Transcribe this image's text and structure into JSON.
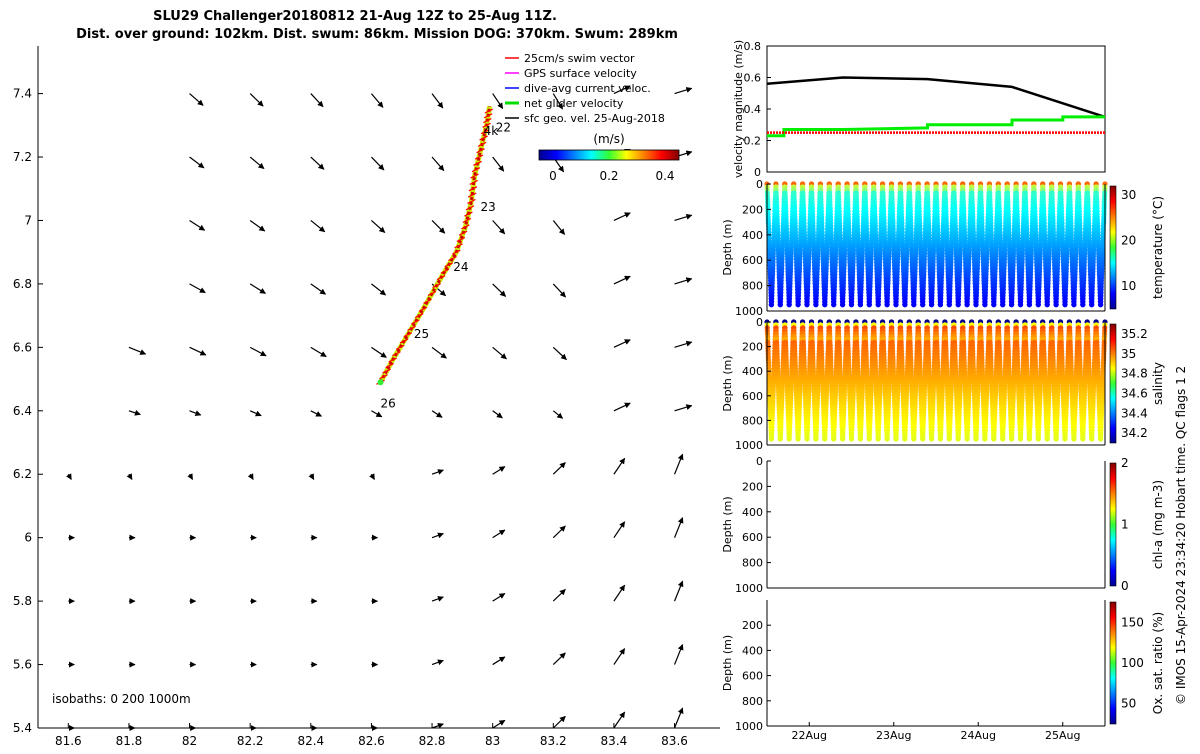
{
  "title_line1": "SLU29 Challenger20180812 21-Aug 12Z to 25-Aug 11Z.",
  "title_line2": "Dist. over ground: 102km. Dist. swum: 86km. Mission DOG: 370km. Swum: 289km",
  "copyright": "© IMOS 15-Apr-2024 23:34:20 Hobart time. QC flags 1  2",
  "chart_data": [
    {
      "type": "quiver-map",
      "xlim": [
        81.5,
        83.75
      ],
      "ylim": [
        5.4,
        7.55
      ],
      "xticks": [
        "81.6",
        "81.8",
        "82",
        "82.2",
        "82.4",
        "82.6",
        "82.8",
        "83",
        "83.2",
        "83.4",
        "83.6"
      ],
      "yticks": [
        "5.4",
        "5.6",
        "5.8",
        "6",
        "6.2",
        "6.4",
        "6.6",
        "6.8",
        "7",
        "7.2",
        "7.4"
      ],
      "legend": {
        "items": [
          {
            "label": "25cm/s swim vector",
            "color": "#ff0000"
          },
          {
            "label": "GPS surface velocity",
            "color": "#ff00ff"
          },
          {
            "label": "dive-avg current veloc.",
            "color": "#0000ff"
          },
          {
            "label": "net glider velocity",
            "color": "#00dd00"
          },
          {
            "label": "sfc geo. vel. 25-Aug-2018",
            "color": "#000000"
          }
        ],
        "placement": "top-right"
      },
      "colorbar": {
        "label": "(m/s)",
        "ticks": [
          "0",
          "0.2",
          "0.4"
        ],
        "range": [
          0,
          0.5
        ]
      },
      "isobaths_label": "isobaths: 0   200  1000m",
      "day_labels": [
        {
          "text": "4k",
          "lon": 82.97,
          "lat": 7.27
        },
        {
          "text": "22",
          "lon": 83.01,
          "lat": 7.28
        },
        {
          "text": "23",
          "lon": 82.96,
          "lat": 7.03
        },
        {
          "text": "24",
          "lon": 82.87,
          "lat": 6.84
        },
        {
          "text": "25",
          "lon": 82.74,
          "lat": 6.63
        },
        {
          "text": "26",
          "lon": 82.63,
          "lat": 6.41
        }
      ],
      "track": [
        [
          82.63,
          6.49
        ],
        [
          82.67,
          6.56
        ],
        [
          82.72,
          6.64
        ],
        [
          82.77,
          6.72
        ],
        [
          82.83,
          6.82
        ],
        [
          82.88,
          6.9
        ],
        [
          82.91,
          6.98
        ],
        [
          82.93,
          7.06
        ],
        [
          82.94,
          7.14
        ],
        [
          82.96,
          7.22
        ],
        [
          82.98,
          7.3
        ],
        [
          82.99,
          7.36
        ]
      ],
      "vectors": {
        "lons": [
          81.6,
          81.8,
          82.0,
          82.2,
          82.4,
          82.6,
          82.8,
          83.0,
          83.2,
          83.4,
          83.6
        ],
        "lats": [
          5.4,
          5.6,
          5.8,
          6.0,
          6.2,
          6.4,
          6.6,
          6.8,
          7.0,
          7.2,
          7.4
        ],
        "note_units": "degrees-per-unit-arrow"
      }
    },
    {
      "type": "line",
      "ylabel": "velocity magnitude (m/s)",
      "ylim": [
        0,
        0.8
      ],
      "yticks": [
        "0",
        "0.2",
        "0.4",
        "0.6",
        "0.8"
      ],
      "xlim": [
        21.5,
        25.5
      ],
      "series": [
        {
          "color": "#000000",
          "x": [
            21.5,
            22.4,
            23.4,
            24.4,
            25.5
          ],
          "values": [
            0.56,
            0.6,
            0.59,
            0.54,
            0.35
          ]
        },
        {
          "color": "#00ee00",
          "x": [
            21.5,
            21.7,
            21.7,
            22.4,
            22.4,
            23.4,
            23.4,
            24.4,
            24.4,
            25.0,
            25.0,
            25.5
          ],
          "values": [
            0.23,
            0.23,
            0.27,
            0.27,
            0.27,
            0.28,
            0.3,
            0.3,
            0.33,
            0.33,
            0.35,
            0.35
          ]
        },
        {
          "color": "#ff0000",
          "x": [
            21.5,
            25.5
          ],
          "values": [
            0.25,
            0.25
          ]
        }
      ]
    },
    {
      "type": "scatter",
      "ylabel": "Depth (m)",
      "cbar_label": "temperature (°C)",
      "ylim": [
        1000,
        0
      ],
      "yticks": [
        "0",
        "200",
        "400",
        "600",
        "800",
        "1000"
      ],
      "cbar_ticks": [
        "10",
        "20",
        "30"
      ],
      "cbar_range": [
        5,
        32
      ],
      "profiles": 38,
      "max_depth": 950
    },
    {
      "type": "scatter",
      "ylabel": "Depth (m)",
      "cbar_label": "salinity",
      "ylim": [
        1000,
        0
      ],
      "yticks": [
        "0",
        "200",
        "400",
        "600",
        "800",
        "1000"
      ],
      "cbar_ticks": [
        "34.2",
        "34.4",
        "34.6",
        "34.8",
        "35",
        "35.2"
      ],
      "cbar_range": [
        34.1,
        35.3
      ],
      "profiles": 38,
      "max_depth": 950
    },
    {
      "type": "scatter",
      "ylabel": "Depth (m)",
      "cbar_label": "chl-a (mg m-3)",
      "ylim": [
        1000,
        0
      ],
      "yticks": [
        "0",
        "200",
        "400",
        "600",
        "800",
        "1000"
      ],
      "cbar_ticks": [
        "0",
        "1",
        "2"
      ],
      "cbar_range": [
        0,
        2
      ]
    },
    {
      "type": "scatter",
      "ylabel": "Depth (m)",
      "cbar_label": "Ox. sat. ratio (%)",
      "ylim": [
        1000,
        0
      ],
      "yticks": [
        "200",
        "400",
        "600",
        "800",
        "1000"
      ],
      "cbar_ticks": [
        "50",
        "100",
        "150"
      ],
      "cbar_range": [
        25,
        175
      ],
      "xticks": [
        "22Aug",
        "23Aug",
        "24Aug",
        "25Aug"
      ]
    }
  ]
}
